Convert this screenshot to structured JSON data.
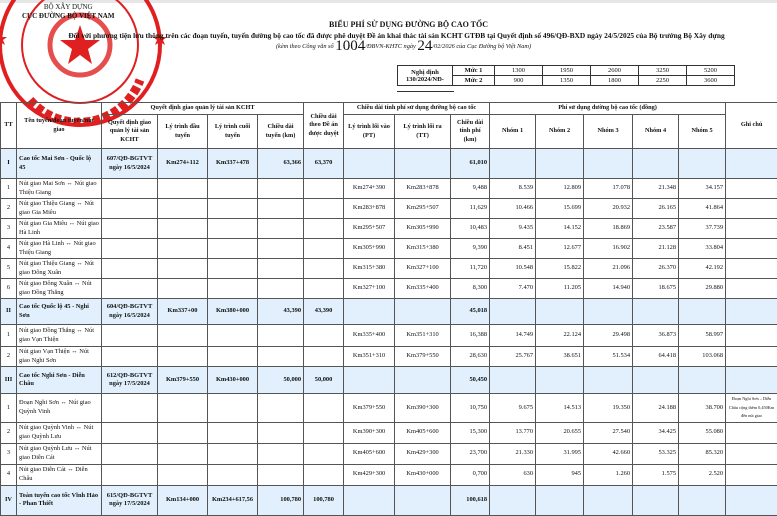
{
  "header": {
    "org_line1": "BỘ XÂY DỰNG",
    "org_line2": "CỤC ĐƯỜNG BỘ VIỆT NAM",
    "title": "BIỂU PHÍ SỬ DỤNG ĐƯỜNG BỘ CAO TỐC",
    "subtitle": "Đối với phương tiện lưu thông trên các đoạn tuyến, tuyến đường bộ cao tốc đã được phê duyệt Đề án khai thác tài sản KCHT GTĐB tại Quyết định số 496/QĐ-BXD ngày 24/5/2025 của Bộ trưởng Bộ Xây dựng",
    "ref_prefix": "(kèm theo Công văn số ",
    "ref_number": "1004",
    "ref_mid": "/ĐBVN-KHTC ngày ",
    "ref_day": "24",
    "ref_suffix": "/02/2026 của Cục Đường bộ Việt Nam)"
  },
  "stamp": {
    "text": "CỤC ĐƯỜNG BỘ VIỆT NAM",
    "color": "#e02020"
  },
  "decree": {
    "label": "Nghị định 130/2024/NĐ-",
    "rows": [
      {
        "level": "Mức 1",
        "values": [
          "1300",
          "1950",
          "2600",
          "3250",
          "5200"
        ]
      },
      {
        "level": "Mức 2",
        "values": [
          "900",
          "1350",
          "1800",
          "2250",
          "3600"
        ]
      }
    ]
  },
  "table": {
    "headers": {
      "tt": "TT",
      "name": "Tên tuyến/đoạn tuyến/nút giao",
      "group1": "Quyết định giao quản lý tài sản KCHT",
      "decision": "Quyết định giao quản lý tài sản KCHT",
      "start": "Lý trình đầu tuyến",
      "end": "Lý trình cuối tuyến",
      "length": "Chiều dài tuyến (km)",
      "approved": "Chiều dài theo Đề án được duyệt",
      "group2": "Chiều dài tính phí sử dụng đường bộ cao tốc",
      "entry": "Lý trình lối vào (PT)",
      "exit": "Lý trình lối ra (TT)",
      "charged": "Chiều dài tính phí (km)",
      "group3": "Phí sử dụng đường bộ cao tốc (đồng)",
      "g1": "Nhóm 1",
      "g2": "Nhóm 2",
      "g3": "Nhóm 3",
      "g4": "Nhóm 4",
      "g5": "Nhóm 5",
      "note": "Ghi chú"
    },
    "rows": [
      {
        "group": true,
        "tt": "I",
        "name": "Cao tốc Mai Sơn - Quốc lộ 45",
        "decision": "607/QĐ-BGTVT ngày 16/5/2024",
        "start": "Km274+112",
        "end": "Km337+478",
        "length": "63,366",
        "approved": "63,370",
        "entry": "",
        "exit": "",
        "charged": "61,010",
        "fees": [
          "",
          "",
          "",
          "",
          ""
        ],
        "note": ""
      },
      {
        "tt": "1",
        "name": "Nút giao Mai Sơn ↔ Nút giao Thiệu Giang",
        "entry": "Km274+390",
        "exit": "Km283+878",
        "charged": "9,488",
        "fees": [
          "8.539",
          "12.809",
          "17.078",
          "21.348",
          "34.157"
        ],
        "note": ""
      },
      {
        "tt": "2",
        "name": "Nút giao Thiệu Giang ↔ Nút giao Gia Miêu",
        "entry": "Km283+878",
        "exit": "Km295+507",
        "charged": "11,629",
        "fees": [
          "10.466",
          "15.699",
          "20.932",
          "26.165",
          "41.864"
        ],
        "note": ""
      },
      {
        "tt": "3",
        "name": "Nút giao Gia Miêu ↔ Nút giao Hà Linh",
        "entry": "Km295+507",
        "exit": "Km305+990",
        "charged": "10,483",
        "fees": [
          "9.435",
          "14.152",
          "18.869",
          "23.587",
          "37.739"
        ],
        "note": ""
      },
      {
        "tt": "4",
        "name": "Nút giao Hà Linh ↔ Nút giao Thiệu Giang",
        "entry": "Km305+990",
        "exit": "Km315+380",
        "charged": "9,390",
        "fees": [
          "8.451",
          "12.677",
          "16.902",
          "21.128",
          "33.804"
        ],
        "note": ""
      },
      {
        "tt": "5",
        "name": "Nút giao Thiệu Giang ↔ Nút giao Đông Xuân",
        "entry": "Km315+380",
        "exit": "Km327+100",
        "charged": "11,720",
        "fees": [
          "10.548",
          "15.822",
          "21.096",
          "26.370",
          "42.192"
        ],
        "note": ""
      },
      {
        "tt": "6",
        "name": "Nút giao Đông Xuân ↔ Nút giao Đồng Thắng",
        "entry": "Km327+100",
        "exit": "Km335+400",
        "charged": "8,300",
        "fees": [
          "7.470",
          "11.205",
          "14.940",
          "18.675",
          "29.880"
        ],
        "note": ""
      },
      {
        "group": true,
        "tt": "II",
        "name": "Cao tốc Quốc lộ 45 - Nghi Sơn",
        "decision": "604/QĐ-BGTVT ngày 16/5/2024",
        "start": "Km337+00",
        "end": "Km380+000",
        "length": "43,390",
        "approved": "43,390",
        "entry": "",
        "exit": "",
        "charged": "45,018",
        "fees": [
          "",
          "",
          "",
          "",
          ""
        ],
        "note": ""
      },
      {
        "tt": "1",
        "name": "Nút giao Đồng Thắng ↔ Nút giao Vạn Thiện",
        "entry": "Km335+400",
        "exit": "Km351+310",
        "charged": "16,388",
        "fees": [
          "14.749",
          "22.124",
          "29.498",
          "36.873",
          "58.997"
        ],
        "note": ""
      },
      {
        "tt": "2",
        "name": "Nút giao Vạn Thiện ↔ Nút giao Nghi Sơn",
        "entry": "Km351+310",
        "exit": "Km379+550",
        "charged": "28,630",
        "fees": [
          "25.767",
          "38.651",
          "51.534",
          "64.418",
          "103.068"
        ],
        "note": ""
      },
      {
        "group": true,
        "tt": "III",
        "name": "Cao tốc Nghi Sơn - Diễn Châu",
        "decision": "612/QĐ-BGTVT ngày 17/5/2024",
        "start": "Km379+550",
        "end": "Km430+000",
        "length": "50,000",
        "approved": "50,000",
        "entry": "",
        "exit": "",
        "charged": "50,450",
        "fees": [
          "",
          "",
          "",
          "",
          ""
        ],
        "note": ""
      },
      {
        "tt": "1",
        "name": "Đoạn Nghi Sơn ↔ Nút giao Quỳnh Vinh",
        "entry": "Km379+550",
        "exit": "Km390+300",
        "charged": "10,750",
        "fees": [
          "9.675",
          "14.513",
          "19.350",
          "24.188",
          "38.700"
        ],
        "note": "Đoạn Nghi Sơn – Diễn Châu cộng thêm 0,450Km đến nút giao"
      },
      {
        "tt": "2",
        "name": "Nút giao Quỳnh Vinh ↔ Nút giao Quỳnh Lưu",
        "entry": "Km390+300",
        "exit": "Km405+600",
        "charged": "15,300",
        "fees": [
          "13.770",
          "20.655",
          "27.540",
          "34.425",
          "55.080"
        ],
        "note": ""
      },
      {
        "tt": "3",
        "name": "Nút giao Quỳnh Lưu ↔ Nút giao Diễn Cát",
        "entry": "Km405+600",
        "exit": "Km429+300",
        "charged": "23,700",
        "fees": [
          "21.330",
          "31.995",
          "42.660",
          "53.325",
          "85.320"
        ],
        "note": ""
      },
      {
        "tt": "4",
        "name": "Nút giao Diễn Cát ↔ Diễn Châu",
        "entry": "Km429+300",
        "exit": "Km430+000",
        "charged": "0,700",
        "fees": [
          "630",
          "945",
          "1.260",
          "1.575",
          "2.520"
        ],
        "note": ""
      },
      {
        "group": true,
        "tt": "IV",
        "name": "Toàn tuyến cao tốc Vĩnh Hảo - Phan Thiết",
        "decision": "615/QĐ-BGTVT ngày 17/5/2024",
        "start": "Km134+000",
        "end": "Km234+617,56",
        "length": "100,780",
        "approved": "100,780",
        "entry": "",
        "exit": "",
        "charged": "100,618",
        "fees": [
          "",
          "",
          "",
          "",
          ""
        ],
        "note": ""
      }
    ]
  }
}
